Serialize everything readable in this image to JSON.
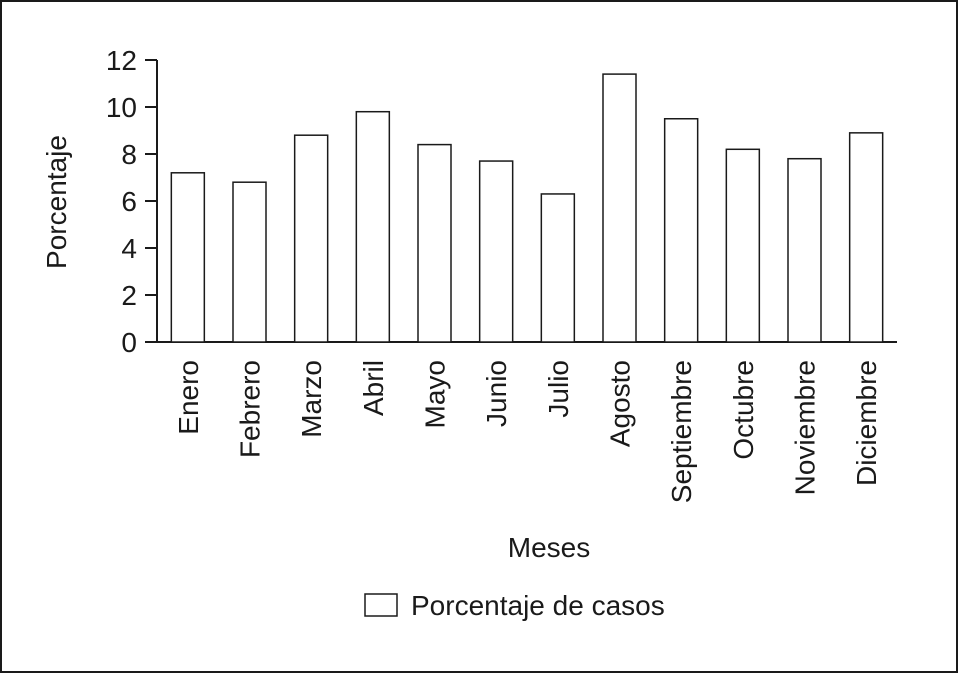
{
  "chart_data": {
    "type": "bar",
    "title": "",
    "xlabel": "Meses",
    "ylabel": "Porcentaje",
    "ylim": [
      0,
      12
    ],
    "yticks": [
      0,
      2,
      4,
      6,
      8,
      10,
      12
    ],
    "grid": false,
    "legend_position": "bottom-center",
    "categories": [
      "Enero",
      "Febrero",
      "Marzo",
      "Abril",
      "Mayo",
      "Junio",
      "Julio",
      "Agosto",
      "Septiembre",
      "Octubre",
      "Noviembre",
      "Diciembre"
    ],
    "series": [
      {
        "name": "Porcentaje de casos",
        "values": [
          7.2,
          6.8,
          8.8,
          9.8,
          8.4,
          7.7,
          6.3,
          11.4,
          9.5,
          8.2,
          7.8,
          8.9
        ],
        "fill": "#ffffff",
        "stroke": "#1a1a1a"
      }
    ]
  }
}
